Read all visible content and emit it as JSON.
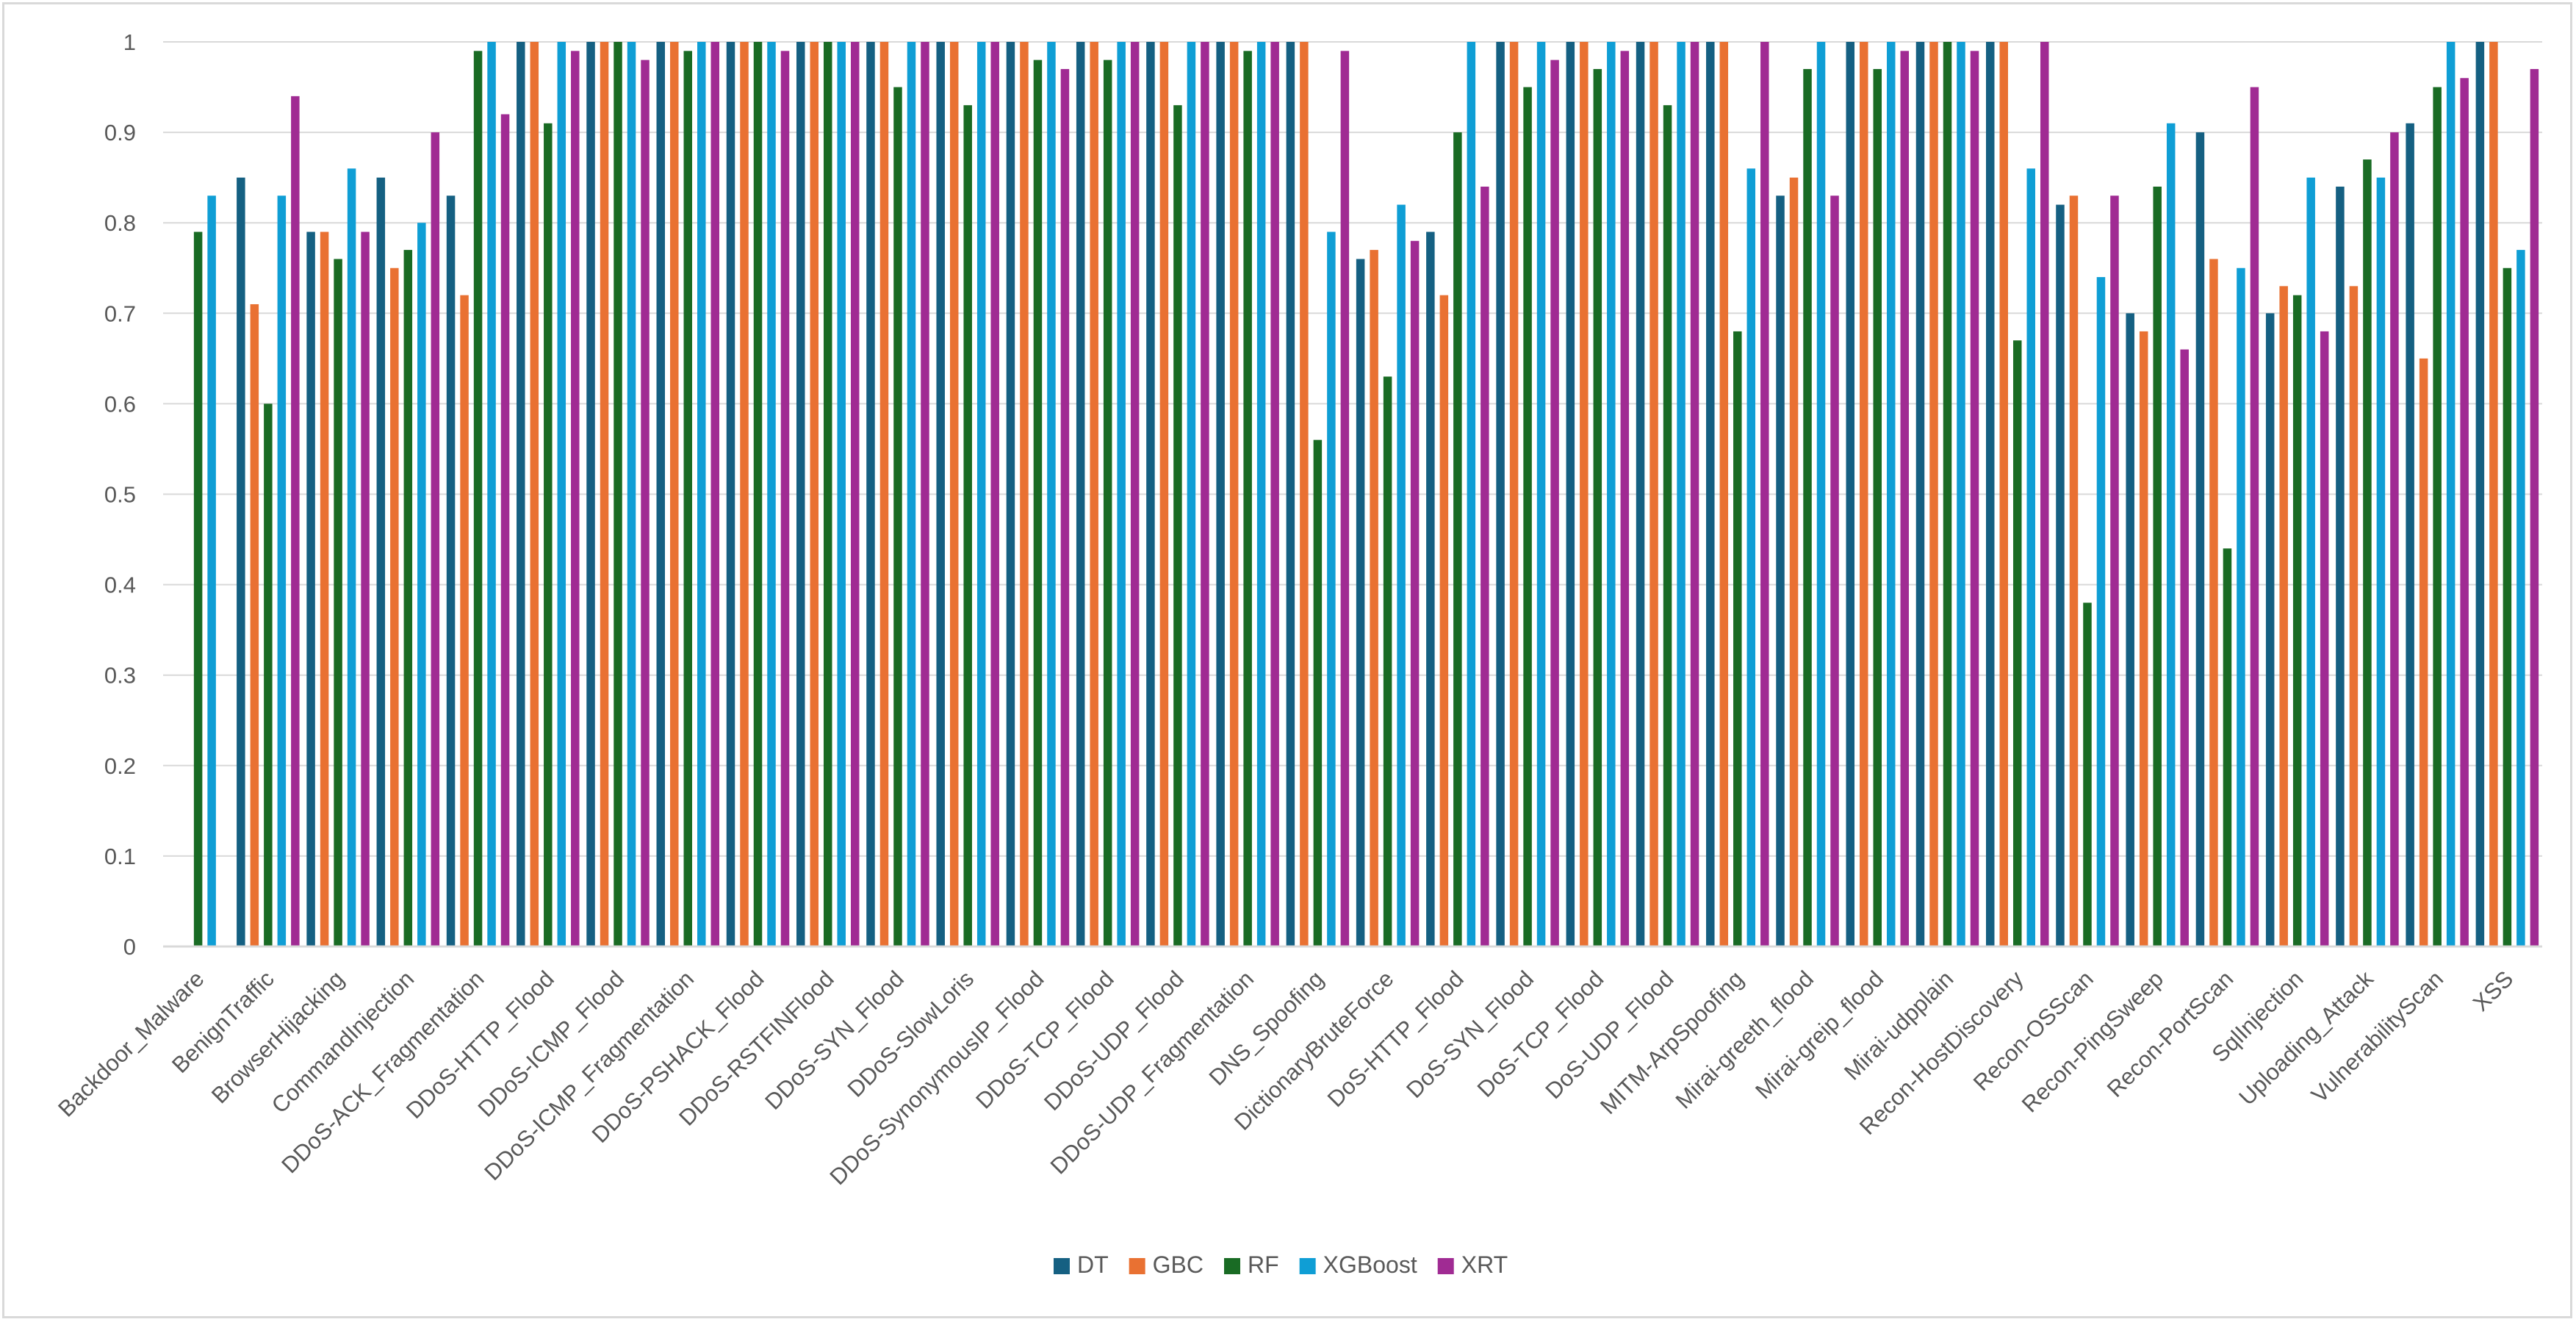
{
  "chart_data": {
    "type": "bar",
    "title": "",
    "xlabel": "",
    "ylabel": "",
    "ylim": [
      0,
      1
    ],
    "yticks": [
      "0",
      "0.1",
      "0.2",
      "0.3",
      "0.4",
      "0.5",
      "0.6",
      "0.7",
      "0.8",
      "0.9",
      "1"
    ],
    "grid": true,
    "legend_position": "bottom-center",
    "categories": [
      "Backdoor_Malware",
      "BenignTraffic",
      "BrowserHijacking",
      "CommandInjection",
      "DDoS-ACK_Fragmentation",
      "DDoS-HTTP_Flood",
      "DDoS-ICMP_Flood",
      "DDoS-ICMP_Fragmentation",
      "DDoS-PSHACK_Flood",
      "DDoS-RSTFINFlood",
      "DDoS-SYN_Flood",
      "DDoS-SlowLoris",
      "DDoS-SynonymousIP_Flood",
      "DDoS-TCP_Flood",
      "DDoS-UDP_Flood",
      "DDoS-UDP_Fragmentation",
      "DNS_Spoofing",
      "DictionaryBruteForce",
      "DoS-HTTP_Flood",
      "DoS-SYN_Flood",
      "DoS-TCP_Flood",
      "DoS-UDP_Flood",
      "MITM-ArpSpoofing",
      "Mirai-greeth_flood",
      "Mirai-greip_flood",
      "Mirai-udpplain",
      "Recon-HostDiscovery",
      "Recon-OSScan",
      "Recon-PingSweep",
      "Recon-PortScan",
      "SqlInjection",
      "Uploading_Attack",
      "VulnerabilityScan",
      "XSS"
    ],
    "series": [
      {
        "name": "DT",
        "color": "#156082",
        "values": [
          0,
          0.85,
          0.79,
          0.85,
          0.83,
          1,
          1,
          1,
          1,
          1,
          1,
          1,
          1,
          1,
          1,
          1,
          1,
          0.76,
          0.79,
          1,
          1,
          1,
          1,
          0.83,
          1,
          1,
          1,
          0.82,
          0.7,
          0.9,
          0.7,
          0.84,
          0.91,
          1
        ]
      },
      {
        "name": "GBC",
        "color": "#E97132",
        "values": [
          0,
          0.71,
          0.79,
          0.75,
          0.72,
          1,
          1,
          1,
          1,
          1,
          1,
          1,
          1,
          1,
          1,
          1,
          1,
          0.77,
          0.72,
          1,
          1,
          1,
          1,
          0.85,
          1,
          1,
          1,
          0.83,
          0.68,
          0.76,
          0.73,
          0.73,
          0.65,
          1
        ]
      },
      {
        "name": "RF",
        "color": "#196B24",
        "values": [
          0.79,
          0.6,
          0.76,
          0.77,
          0.99,
          0.91,
          1,
          0.99,
          1,
          1,
          0.95,
          0.93,
          0.98,
          0.98,
          0.93,
          0.99,
          0.56,
          0.63,
          0.9,
          0.95,
          0.97,
          0.93,
          0.68,
          0.97,
          0.97,
          1,
          0.67,
          0.38,
          0.84,
          0.44,
          0.72,
          0.87,
          0.95,
          0.75
        ]
      },
      {
        "name": "XGBoost",
        "color": "#0F9ED5",
        "values": [
          0.83,
          0.83,
          0.86,
          0.8,
          1,
          1,
          1,
          1,
          1,
          1,
          1,
          1,
          1,
          1,
          1,
          1,
          0.79,
          0.82,
          1,
          1,
          1,
          1,
          0.86,
          1,
          1,
          1,
          0.86,
          0.74,
          0.91,
          0.75,
          0.85,
          0.85,
          1,
          0.77
        ]
      },
      {
        "name": "XRT",
        "color": "#A02B93",
        "values": [
          0,
          0.94,
          0.79,
          0.9,
          0.92,
          0.99,
          0.98,
          1,
          0.99,
          1,
          1,
          1,
          0.97,
          1,
          1,
          1,
          0.99,
          0.78,
          0.84,
          0.98,
          0.99,
          1,
          1,
          0.83,
          0.99,
          0.99,
          1,
          0.83,
          0.66,
          0.95,
          0.68,
          0.9,
          0.96,
          0.97
        ]
      }
    ]
  }
}
